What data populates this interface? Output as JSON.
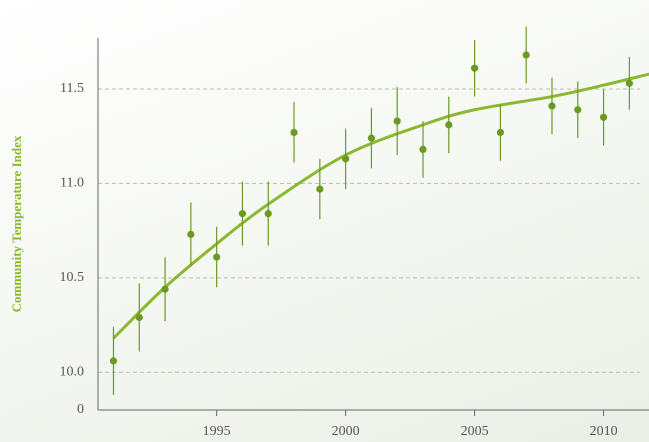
{
  "chart_data": {
    "type": "scatter",
    "y_label": "Community Temperature Index",
    "y_label_color": "#8ab82e",
    "axis_break_label": "0",
    "xlim": [
      1990.4,
      2011.8
    ],
    "xticks": [
      1995,
      2000,
      2005,
      2010
    ],
    "ylim": [
      9.8,
      11.77
    ],
    "yticks": [
      {
        "value": 10.0,
        "label": "10.0"
      },
      {
        "value": 10.5,
        "label": "10.5"
      },
      {
        "value": 11.0,
        "label": "11.0"
      },
      {
        "value": 11.5,
        "label": "11.5"
      }
    ],
    "grid": true,
    "series": [
      {
        "color": "#6a9a22",
        "x": [
          1991,
          1992,
          1993,
          1994,
          1995,
          1996,
          1997,
          1998,
          1999,
          2000,
          2001,
          2002,
          2003,
          2004,
          2005,
          2006,
          2007,
          2008,
          2009,
          2010,
          2011
        ],
        "values": [
          10.06,
          10.29,
          10.44,
          10.73,
          10.61,
          10.84,
          10.84,
          11.27,
          10.97,
          11.13,
          11.24,
          11.33,
          11.18,
          11.31,
          11.61,
          11.27,
          11.68,
          11.41,
          11.39,
          11.35,
          11.53
        ],
        "errors": [
          0.18,
          0.18,
          0.17,
          0.17,
          0.16,
          0.17,
          0.17,
          0.16,
          0.16,
          0.16,
          0.16,
          0.18,
          0.15,
          0.15,
          0.15,
          0.15,
          0.15,
          0.15,
          0.15,
          0.15,
          0.14
        ]
      }
    ],
    "fit": {
      "color": "#8ab82e",
      "x": [
        1991,
        1993,
        1995,
        1997,
        2000,
        2003,
        2005,
        2008,
        2010,
        2011.8
      ],
      "values": [
        10.18,
        10.45,
        10.68,
        10.89,
        11.15,
        11.31,
        11.39,
        11.46,
        11.52,
        11.58
      ]
    }
  }
}
